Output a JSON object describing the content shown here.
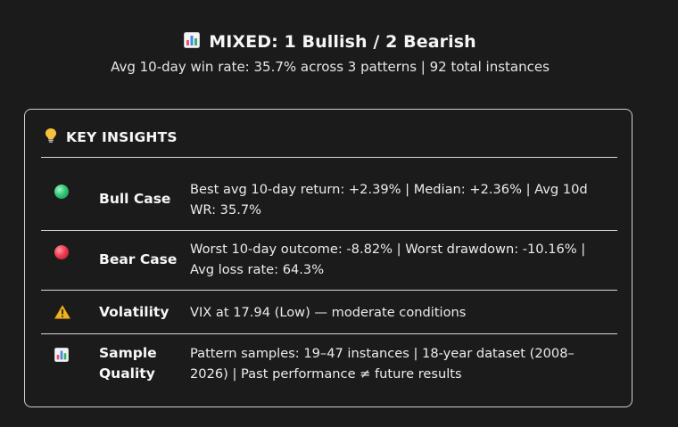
{
  "header": {
    "icon": "bar-chart-icon",
    "title": "MIXED: 1 Bullish / 2 Bearish",
    "subtitle": "Avg 10-day win rate: 35.7% across 3 patterns | 92 total instances"
  },
  "insights": {
    "icon": "lightbulb-icon",
    "title": "KEY INSIGHTS",
    "rows": [
      {
        "icon": "green-circle-icon",
        "label": "Bull Case",
        "text": "Best avg 10-day return: +2.39% | Median: +2.36% | Avg 10d WR: 35.7%"
      },
      {
        "icon": "red-circle-icon",
        "label": "Bear Case",
        "text": "Worst 10-day outcome: -8.82% | Worst drawdown: -10.16% | Avg loss rate: 64.3%"
      },
      {
        "icon": "warning-icon",
        "label": "Volatility",
        "text": "VIX at 17.94 (Low) — moderate conditions"
      },
      {
        "icon": "bar-chart-icon",
        "label": "Sample Quality",
        "text": "Pattern samples: 19–47 instances | 18-year dataset (2008–2026) | Past performance ≠ future results"
      }
    ]
  },
  "colors": {
    "background": "#1b1b1c",
    "border": "#cfcfcf",
    "bull": "#33c777",
    "bear": "#ef3d51",
    "warning": "#f0b323"
  }
}
